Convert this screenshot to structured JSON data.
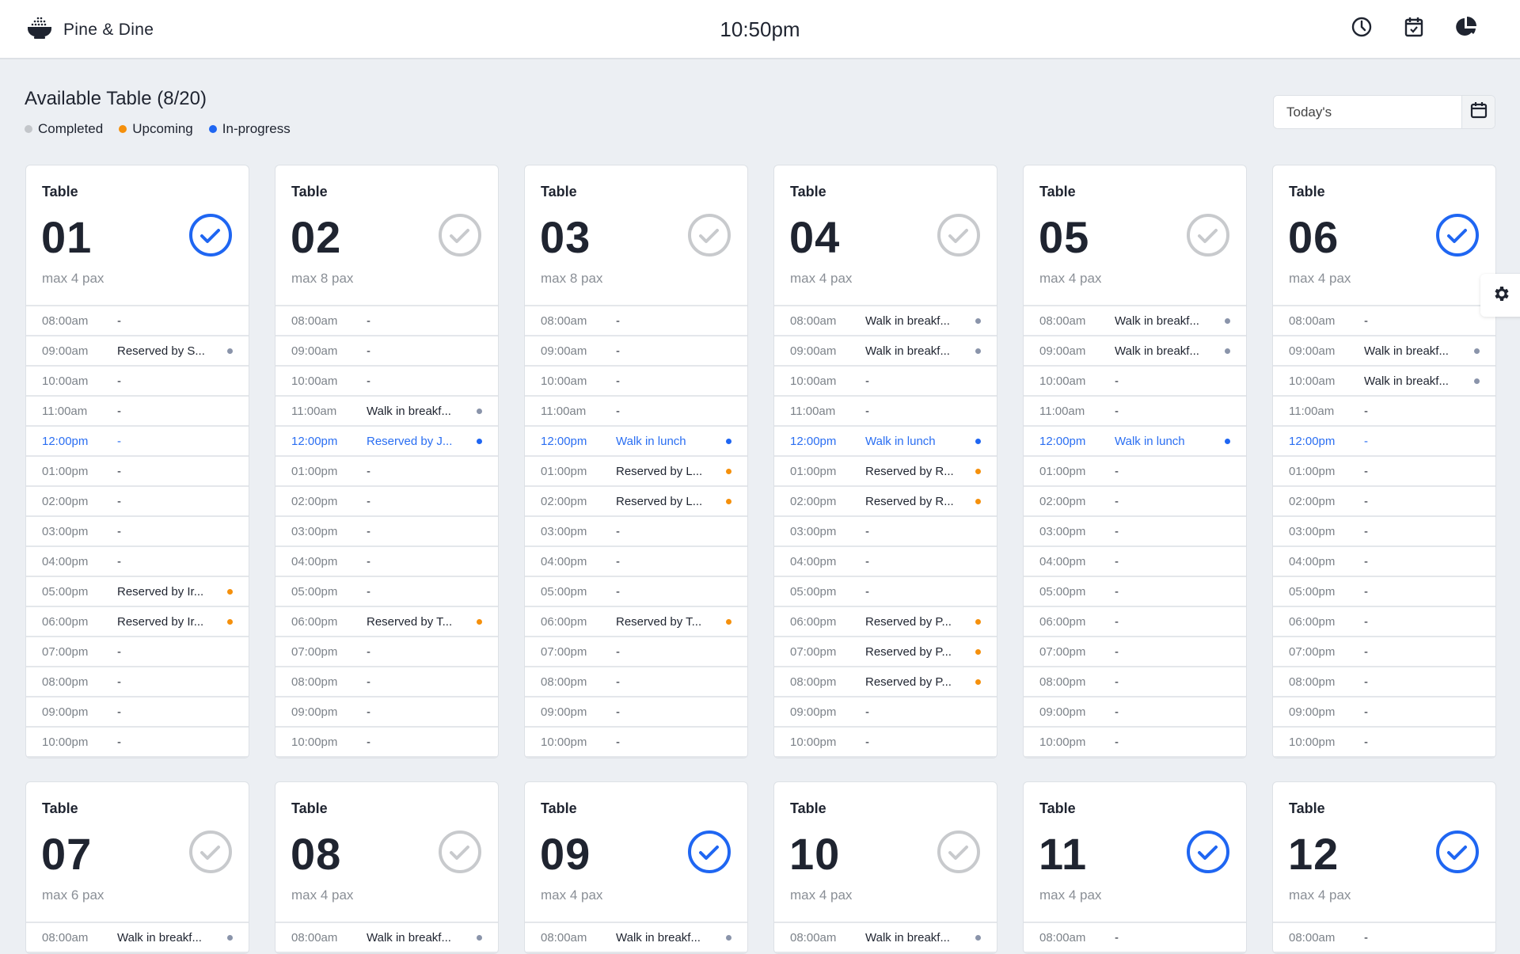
{
  "app": {
    "name": "Pine & Dine",
    "time": "10:50pm",
    "header_icons": [
      "clock-icon",
      "calendar-check-icon",
      "pie-chart-icon"
    ]
  },
  "page": {
    "title": "Available Table (8/20)",
    "date_value": "Today's"
  },
  "legend": [
    {
      "label": "Completed",
      "color": "#c3c6ca"
    },
    {
      "label": "Upcoming",
      "color": "#f5900c"
    },
    {
      "label": "In-progress",
      "color": "#1f66f2"
    }
  ],
  "colors": {
    "completed": "#8a94aa",
    "upcoming": "#f5900c",
    "in-progress": "#1f66f2",
    "check_active": "#1f66f2",
    "check_inactive": "#c8cacd"
  },
  "current_slot": "12:00pm",
  "table_label": "Table",
  "tables": [
    {
      "number": "01",
      "pax": "max 4 pax",
      "checked": true,
      "slots": [
        [
          "08:00am",
          "-",
          ""
        ],
        [
          "09:00am",
          "Reserved by S...",
          "completed"
        ],
        [
          "10:00am",
          "-",
          ""
        ],
        [
          "11:00am",
          "-",
          ""
        ],
        [
          "12:00pm",
          "-",
          ""
        ],
        [
          "01:00pm",
          "-",
          ""
        ],
        [
          "02:00pm",
          "-",
          ""
        ],
        [
          "03:00pm",
          "-",
          ""
        ],
        [
          "04:00pm",
          "-",
          ""
        ],
        [
          "05:00pm",
          "Reserved by Ir...",
          "upcoming"
        ],
        [
          "06:00pm",
          "Reserved by Ir...",
          "upcoming"
        ],
        [
          "07:00pm",
          "-",
          ""
        ],
        [
          "08:00pm",
          "-",
          ""
        ],
        [
          "09:00pm",
          "-",
          ""
        ],
        [
          "10:00pm",
          "-",
          ""
        ]
      ]
    },
    {
      "number": "02",
      "pax": "max 8 pax",
      "checked": false,
      "slots": [
        [
          "08:00am",
          "-",
          ""
        ],
        [
          "09:00am",
          "-",
          ""
        ],
        [
          "10:00am",
          "-",
          ""
        ],
        [
          "11:00am",
          "Walk in breakf...",
          "completed"
        ],
        [
          "12:00pm",
          "Reserved by J...",
          "in-progress"
        ],
        [
          "01:00pm",
          "-",
          ""
        ],
        [
          "02:00pm",
          "-",
          ""
        ],
        [
          "03:00pm",
          "-",
          ""
        ],
        [
          "04:00pm",
          "-",
          ""
        ],
        [
          "05:00pm",
          "-",
          ""
        ],
        [
          "06:00pm",
          "Reserved by T...",
          "upcoming"
        ],
        [
          "07:00pm",
          "-",
          ""
        ],
        [
          "08:00pm",
          "-",
          ""
        ],
        [
          "09:00pm",
          "-",
          ""
        ],
        [
          "10:00pm",
          "-",
          ""
        ]
      ]
    },
    {
      "number": "03",
      "pax": "max 8 pax",
      "checked": false,
      "slots": [
        [
          "08:00am",
          "-",
          ""
        ],
        [
          "09:00am",
          "-",
          ""
        ],
        [
          "10:00am",
          "-",
          ""
        ],
        [
          "11:00am",
          "-",
          ""
        ],
        [
          "12:00pm",
          "Walk in lunch",
          "in-progress"
        ],
        [
          "01:00pm",
          "Reserved by L...",
          "upcoming"
        ],
        [
          "02:00pm",
          "Reserved by L...",
          "upcoming"
        ],
        [
          "03:00pm",
          "-",
          ""
        ],
        [
          "04:00pm",
          "-",
          ""
        ],
        [
          "05:00pm",
          "-",
          ""
        ],
        [
          "06:00pm",
          "Reserved by T...",
          "upcoming"
        ],
        [
          "07:00pm",
          "-",
          ""
        ],
        [
          "08:00pm",
          "-",
          ""
        ],
        [
          "09:00pm",
          "-",
          ""
        ],
        [
          "10:00pm",
          "-",
          ""
        ]
      ]
    },
    {
      "number": "04",
      "pax": "max 4 pax",
      "checked": false,
      "slots": [
        [
          "08:00am",
          "Walk in breakf...",
          "completed"
        ],
        [
          "09:00am",
          "Walk in breakf...",
          "completed"
        ],
        [
          "10:00am",
          "-",
          ""
        ],
        [
          "11:00am",
          "-",
          ""
        ],
        [
          "12:00pm",
          "Walk in lunch",
          "in-progress"
        ],
        [
          "01:00pm",
          "Reserved by R...",
          "upcoming"
        ],
        [
          "02:00pm",
          "Reserved by R...",
          "upcoming"
        ],
        [
          "03:00pm",
          "-",
          ""
        ],
        [
          "04:00pm",
          "-",
          ""
        ],
        [
          "05:00pm",
          "-",
          ""
        ],
        [
          "06:00pm",
          "Reserved by P...",
          "upcoming"
        ],
        [
          "07:00pm",
          "Reserved by P...",
          "upcoming"
        ],
        [
          "08:00pm",
          "Reserved by P...",
          "upcoming"
        ],
        [
          "09:00pm",
          "-",
          ""
        ],
        [
          "10:00pm",
          "-",
          ""
        ]
      ]
    },
    {
      "number": "05",
      "pax": "max 4 pax",
      "checked": false,
      "slots": [
        [
          "08:00am",
          "Walk in breakf...",
          "completed"
        ],
        [
          "09:00am",
          "Walk in breakf...",
          "completed"
        ],
        [
          "10:00am",
          "-",
          ""
        ],
        [
          "11:00am",
          "-",
          ""
        ],
        [
          "12:00pm",
          "Walk in lunch",
          "in-progress"
        ],
        [
          "01:00pm",
          "-",
          ""
        ],
        [
          "02:00pm",
          "-",
          ""
        ],
        [
          "03:00pm",
          "-",
          ""
        ],
        [
          "04:00pm",
          "-",
          ""
        ],
        [
          "05:00pm",
          "-",
          ""
        ],
        [
          "06:00pm",
          "-",
          ""
        ],
        [
          "07:00pm",
          "-",
          ""
        ],
        [
          "08:00pm",
          "-",
          ""
        ],
        [
          "09:00pm",
          "-",
          ""
        ],
        [
          "10:00pm",
          "-",
          ""
        ]
      ]
    },
    {
      "number": "06",
      "pax": "max 4 pax",
      "checked": true,
      "slots": [
        [
          "08:00am",
          "-",
          ""
        ],
        [
          "09:00am",
          "Walk in breakf...",
          "completed"
        ],
        [
          "10:00am",
          "Walk in breakf...",
          "completed"
        ],
        [
          "11:00am",
          "-",
          ""
        ],
        [
          "12:00pm",
          "-",
          ""
        ],
        [
          "01:00pm",
          "-",
          ""
        ],
        [
          "02:00pm",
          "-",
          ""
        ],
        [
          "03:00pm",
          "-",
          ""
        ],
        [
          "04:00pm",
          "-",
          ""
        ],
        [
          "05:00pm",
          "-",
          ""
        ],
        [
          "06:00pm",
          "-",
          ""
        ],
        [
          "07:00pm",
          "-",
          ""
        ],
        [
          "08:00pm",
          "-",
          ""
        ],
        [
          "09:00pm",
          "-",
          ""
        ],
        [
          "10:00pm",
          "-",
          ""
        ]
      ]
    },
    {
      "number": "07",
      "pax": "max 6 pax",
      "checked": false,
      "slots": [
        [
          "08:00am",
          "Walk in breakf...",
          "completed"
        ]
      ]
    },
    {
      "number": "08",
      "pax": "max 4 pax",
      "checked": false,
      "slots": [
        [
          "08:00am",
          "Walk in breakf...",
          "completed"
        ]
      ]
    },
    {
      "number": "09",
      "pax": "max 4 pax",
      "checked": true,
      "slots": [
        [
          "08:00am",
          "Walk in breakf...",
          "completed"
        ]
      ]
    },
    {
      "number": "10",
      "pax": "max 4 pax",
      "checked": false,
      "slots": [
        [
          "08:00am",
          "Walk in breakf...",
          "completed"
        ]
      ]
    },
    {
      "number": "11",
      "pax": "max 4 pax",
      "checked": true,
      "slots": [
        [
          "08:00am",
          "-",
          ""
        ]
      ]
    },
    {
      "number": "12",
      "pax": "max 4 pax",
      "checked": true,
      "slots": [
        [
          "08:00am",
          "-",
          ""
        ]
      ]
    }
  ]
}
